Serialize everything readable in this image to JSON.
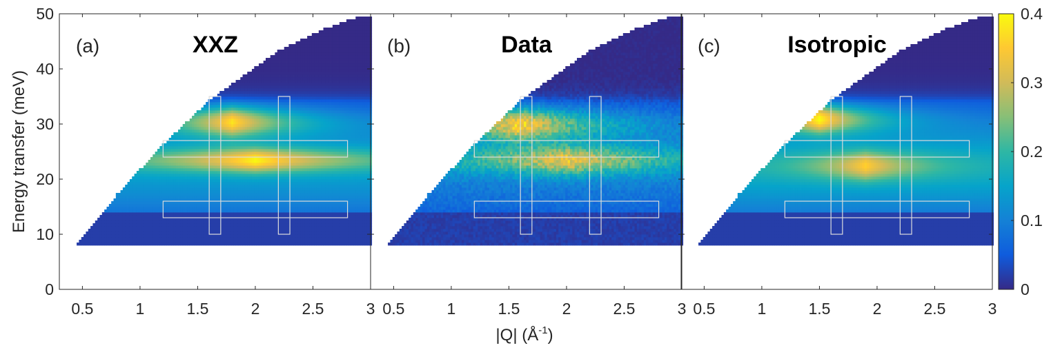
{
  "chart_data": {
    "type": "heatmap",
    "ylabel": "Energy transfer (meV)",
    "xlabel_main": "|Q| (Å",
    "xlabel_exp": "-1",
    "xlabel_close": ")",
    "xlim": [
      0.3,
      3
    ],
    "ylim": [
      0,
      50
    ],
    "x_ticks": [
      "0.5",
      "1",
      "1.5",
      "2",
      "2.5",
      "3"
    ],
    "x_tick_values": [
      0.5,
      1,
      1.5,
      2,
      2.5,
      3
    ],
    "y_ticks": [
      "0",
      "10",
      "20",
      "30",
      "40",
      "50"
    ],
    "y_tick_values": [
      0,
      10,
      20,
      30,
      40,
      50
    ],
    "colorbar": {
      "range": [
        0,
        0.4
      ],
      "ticks": [
        "0",
        "0.1",
        "0.2",
        "0.3",
        "0.4"
      ],
      "tick_values": [
        0,
        0.1,
        0.2,
        0.3,
        0.4
      ],
      "colormap": "parula",
      "colors": [
        "#352a87",
        "#0f5cdd",
        "#1481d6",
        "#06a4ca",
        "#2eb7a4",
        "#87bf77",
        "#d1bb59",
        "#fec832",
        "#f9fb0e"
      ]
    },
    "kinematic_edge": {
      "q": [
        0.45,
        0.8,
        1.2,
        1.6,
        2.2,
        2.6,
        3.0
      ],
      "e": [
        8,
        17,
        26,
        34,
        43,
        47,
        50
      ]
    },
    "energy_min": 8,
    "panels": [
      {
        "tag": "(a)",
        "title": "XXZ",
        "bands": [
          {
            "e": 30.5,
            "width": 2.8,
            "amp": 0.3,
            "q_peak": 1.8,
            "q_decay": 0.55
          },
          {
            "e": 23.5,
            "width": 2.2,
            "amp": 0.26,
            "q_peak": 2.0,
            "q_decay": 0.9
          }
        ],
        "background": 0.12,
        "noise": 0.0
      },
      {
        "tag": "(b)",
        "title": "Data",
        "bands": [
          {
            "e": 30.0,
            "width": 3.0,
            "amp": 0.3,
            "q_peak": 1.6,
            "q_decay": 0.7
          },
          {
            "e": 23.5,
            "width": 2.6,
            "amp": 0.24,
            "q_peak": 2.0,
            "q_decay": 0.9
          }
        ],
        "background": 0.08,
        "noise": 0.12
      },
      {
        "tag": "(c)",
        "title": "Isotropic",
        "bands": [
          {
            "e": 31.0,
            "width": 2.6,
            "amp": 0.32,
            "q_peak": 1.5,
            "q_decay": 0.45
          },
          {
            "e": 22.5,
            "width": 2.6,
            "amp": 0.2,
            "q_peak": 1.9,
            "q_decay": 0.45
          }
        ],
        "background": 0.14,
        "noise": 0.0
      }
    ],
    "integration_boxes": [
      {
        "q": [
          1.2,
          2.8
        ],
        "e": [
          24,
          27
        ]
      },
      {
        "q": [
          1.2,
          2.8
        ],
        "e": [
          13,
          16
        ]
      },
      {
        "q": [
          1.6,
          1.7
        ],
        "e": [
          10,
          35
        ]
      },
      {
        "q": [
          2.2,
          2.3
        ],
        "e": [
          10,
          35
        ]
      }
    ]
  }
}
